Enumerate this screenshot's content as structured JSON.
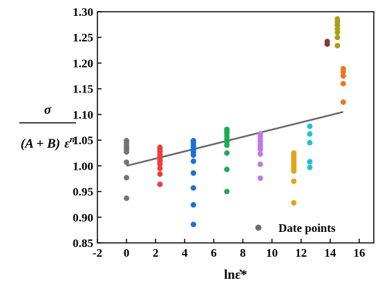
{
  "chart_data": {
    "type": "scatter",
    "xlabel": "lnε̇*",
    "ylabel": {
      "numerator": "σ",
      "denominator_main": "(A + B)",
      "denominator_eps": "ε",
      "denominator_sup": "n"
    },
    "xlim": [
      -2,
      17
    ],
    "ylim": [
      0.85,
      1.3
    ],
    "x_ticks": [
      -2,
      0,
      2,
      4,
      6,
      8,
      10,
      12,
      14,
      16
    ],
    "y_ticks": [
      0.85,
      0.9,
      0.95,
      1.0,
      1.05,
      1.1,
      1.15,
      1.2,
      1.25,
      1.3
    ],
    "x_tick_labels": [
      "-2",
      "0",
      "2",
      "4",
      "6",
      "8",
      "10",
      "12",
      "14",
      "16"
    ],
    "y_tick_labels": [
      "0.85",
      "0.90",
      "0.95",
      "1.00",
      "1.05",
      "1.10",
      "1.15",
      "1.20",
      "1.25",
      "1.30"
    ],
    "grid": false,
    "legend": {
      "label": "Date points",
      "marker_color": "#6d6d6d",
      "position": "bottom-right"
    },
    "fit_line": {
      "x": [
        0,
        14.9
      ],
      "y": [
        1.0,
        1.105
      ],
      "color": "#666666"
    },
    "groups": [
      {
        "x": 0,
        "color": "#737373",
        "y": [
          0.937,
          0.977,
          1.007,
          1.027,
          1.032,
          1.036,
          1.04,
          1.045,
          1.049
        ]
      },
      {
        "x": 2.3,
        "color": "#f03c3c",
        "y": [
          0.964,
          0.984,
          0.995,
          1.003,
          1.007,
          1.011,
          1.015,
          1.019,
          1.023,
          1.028,
          1.032,
          1.036
        ]
      },
      {
        "x": 4.6,
        "color": "#1f6fd6",
        "y": [
          0.886,
          0.924,
          0.957,
          0.986,
          1.009,
          1.021,
          1.026,
          1.03,
          1.035,
          1.04,
          1.045,
          1.049
        ]
      },
      {
        "x": 6.9,
        "color": "#22aa52",
        "y": [
          0.95,
          0.993,
          1.025,
          1.04,
          1.046,
          1.052,
          1.058,
          1.063,
          1.067,
          1.071
        ]
      },
      {
        "x": 9.2,
        "color": "#bf7ae4",
        "y": [
          0.976,
          1.003,
          1.023,
          1.032,
          1.036,
          1.041,
          1.047,
          1.052,
          1.058,
          1.062
        ]
      },
      {
        "x": 11.5,
        "color": "#e3a31a",
        "y": [
          0.928,
          0.97,
          0.99,
          0.996,
          1.001,
          1.005,
          1.009,
          1.013,
          1.017,
          1.021,
          1.025
        ]
      },
      {
        "x": 12.6,
        "color": "#21c3cc",
        "y": [
          0.997,
          1.008,
          1.045,
          1.062,
          1.077
        ]
      },
      {
        "x": 13.8,
        "color": "#7f3d3d",
        "y": [
          1.237,
          1.242
        ]
      },
      {
        "x": 14.5,
        "color": "#a6a114",
        "y": [
          1.234,
          1.25,
          1.26,
          1.267,
          1.274,
          1.28,
          1.286
        ]
      },
      {
        "x": 14.9,
        "color": "#ee7421",
        "y": [
          1.124,
          1.16,
          1.175,
          1.183,
          1.189
        ]
      }
    ]
  }
}
